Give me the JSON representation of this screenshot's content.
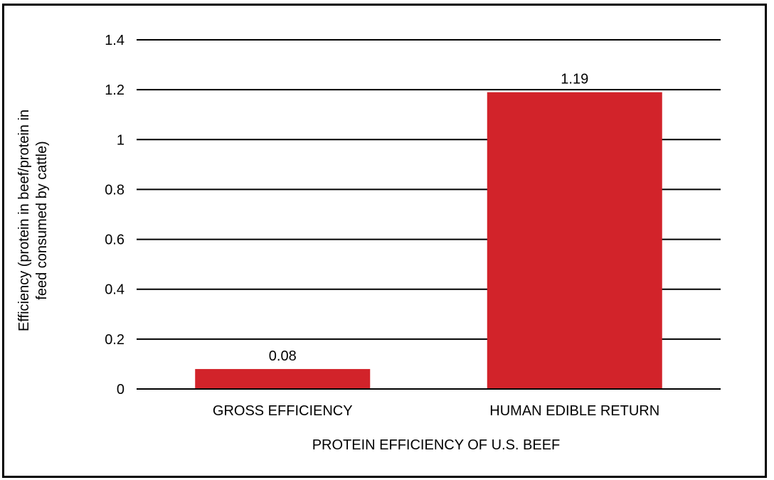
{
  "chart_data": {
    "type": "bar",
    "categories": [
      "GROSS EFFICIENCY",
      "HUMAN EDIBLE RETURN"
    ],
    "values": [
      0.08,
      1.19
    ],
    "value_labels": [
      "0.08",
      "1.19"
    ],
    "title": "",
    "xlabel": "PROTEIN EFFICIENCY OF U.S. BEEF",
    "ylabel_lines": [
      "Efficiency (protein in beef/protein in",
      "feed consumed by cattle)"
    ],
    "ylim": [
      0,
      1.4
    ],
    "yticks": [
      0,
      0.2,
      0.4,
      0.6,
      0.8,
      1,
      1.2,
      1.4
    ],
    "ytick_labels": [
      "0",
      "0.2",
      "0.4",
      "0.6",
      "0.8",
      "1",
      "1.2",
      "1.4"
    ],
    "grid": true,
    "legend": "none",
    "bar_color": "#d2232a"
  }
}
